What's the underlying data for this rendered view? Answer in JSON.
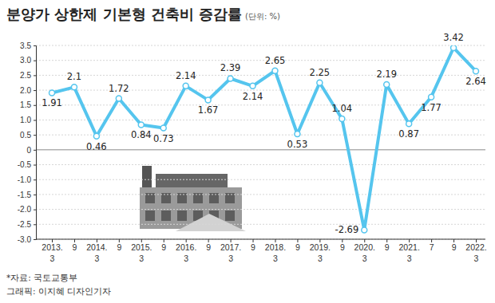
{
  "chart_data": {
    "type": "line",
    "title": "분양가 상한제 기본형 건축비 증감률",
    "subtitle": "(단위: %)",
    "annotations": [
      "*자료: 국토교통부",
      "그래픽: 이지혜 디자인기자"
    ],
    "categories": [
      "2013.3",
      "9",
      "2014.3",
      "9",
      "2015.3",
      "9",
      "2016.3",
      "9",
      "2017.3",
      "9",
      "2018.3",
      "9",
      "2019.3",
      "9",
      "2020.3",
      "9",
      "2021.3",
      "7",
      "9",
      "2022.3"
    ],
    "values": [
      1.91,
      2.1,
      0.46,
      1.72,
      0.84,
      0.73,
      2.14,
      1.67,
      2.39,
      2.14,
      2.65,
      0.53,
      2.25,
      1.04,
      -2.69,
      2.19,
      0.87,
      1.77,
      3.42,
      2.64
    ],
    "color": "#55c5ee",
    "marker": "circle",
    "ylim": [
      -3.0,
      3.5
    ],
    "yticks": [
      {
        "value": -3.0,
        "label": "-3.0"
      },
      -2.5,
      {
        "value": -2.0,
        "label": "-2.0"
      },
      -1.5,
      {
        "value": -1.0,
        "label": "-1.0"
      },
      -0.5,
      0,
      0.5,
      {
        "value": 1.0,
        "label": "1.0"
      },
      1.5,
      {
        "value": 2.0,
        "label": "2.0"
      },
      2.5,
      {
        "value": 3.0,
        "label": "3.0"
      },
      3.5
    ],
    "grid": true,
    "data_labels": true
  }
}
